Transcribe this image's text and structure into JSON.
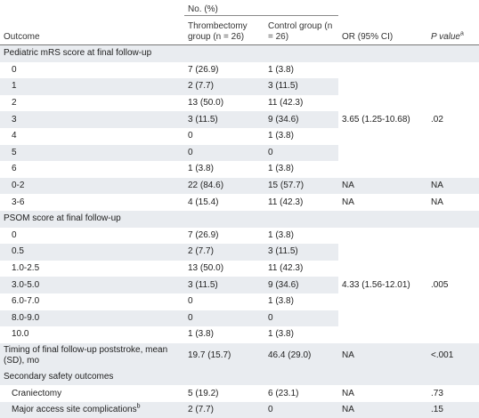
{
  "header": {
    "group_label": "No. (%)",
    "outcome": "Outcome",
    "thrombectomy": "Thrombectomy group (n = 26)",
    "control": "Control group (n = 26)",
    "or": "OR (95% CI)",
    "p": "P value",
    "p_note": "a"
  },
  "sections": [
    {
      "title": "Pediatric mRS score at final follow-up",
      "rows": [
        {
          "label": "0",
          "thrombectomy": "7 (26.9)",
          "control": "1 (3.8)",
          "or": "3.65 (1.25-10.68)",
          "p": ".02"
        },
        {
          "label": "1",
          "thrombectomy": "2 (7.7)",
          "control": "3 (11.5)"
        },
        {
          "label": "2",
          "thrombectomy": "13 (50.0)",
          "control": "11 (42.3)"
        },
        {
          "label": "3",
          "thrombectomy": "3 (11.5)",
          "control": "9 (34.6)"
        },
        {
          "label": "4",
          "thrombectomy": "0",
          "control": "1 (3.8)"
        },
        {
          "label": "5",
          "thrombectomy": "0",
          "control": "0"
        },
        {
          "label": "6",
          "thrombectomy": "1 (3.8)",
          "control": "1 (3.8)"
        },
        {
          "label": "0-2",
          "thrombectomy": "22 (84.6)",
          "control": "15 (57.7)",
          "or": "NA",
          "p": "NA"
        },
        {
          "label": "3-6",
          "thrombectomy": "4 (15.4)",
          "control": "11 (42.3)",
          "or": "NA",
          "p": "NA"
        }
      ]
    },
    {
      "title": "PSOM score at final follow-up",
      "rows": [
        {
          "label": "0",
          "thrombectomy": "7 (26.9)",
          "control": "1 (3.8)",
          "or": "4.33 (1.56-12.01)",
          "p": ".005"
        },
        {
          "label": "0.5",
          "thrombectomy": "2 (7.7)",
          "control": "3 (11.5)"
        },
        {
          "label": "1.0-2.5",
          "thrombectomy": "13 (50.0)",
          "control": "11 (42.3)"
        },
        {
          "label": "3.0-5.0",
          "thrombectomy": "3 (11.5)",
          "control": "9 (34.6)"
        },
        {
          "label": "6.0-7.0",
          "thrombectomy": "0",
          "control": "1 (3.8)"
        },
        {
          "label": "8.0-9.0",
          "thrombectomy": "0",
          "control": "0"
        },
        {
          "label": "10.0",
          "thrombectomy": "1 (3.8)",
          "control": "1 (3.8)"
        }
      ]
    },
    {
      "rows": [
        {
          "label": "Timing of final follow-up poststroke, mean (SD), mo",
          "thrombectomy": "19.7 (15.7)",
          "control": "46.4 (29.0)",
          "or": "NA",
          "p": "<.001"
        }
      ]
    },
    {
      "title": "Secondary safety outcomes",
      "rows": [
        {
          "label": "Craniectomy",
          "thrombectomy": "5 (19.2)",
          "control": "6 (23.1)",
          "or": "NA",
          "p": ".73"
        },
        {
          "label": "Major access site complications",
          "note": "b",
          "thrombectomy": "2 (7.7)",
          "control": "0",
          "or": "NA",
          "p": ".15"
        }
      ]
    }
  ]
}
